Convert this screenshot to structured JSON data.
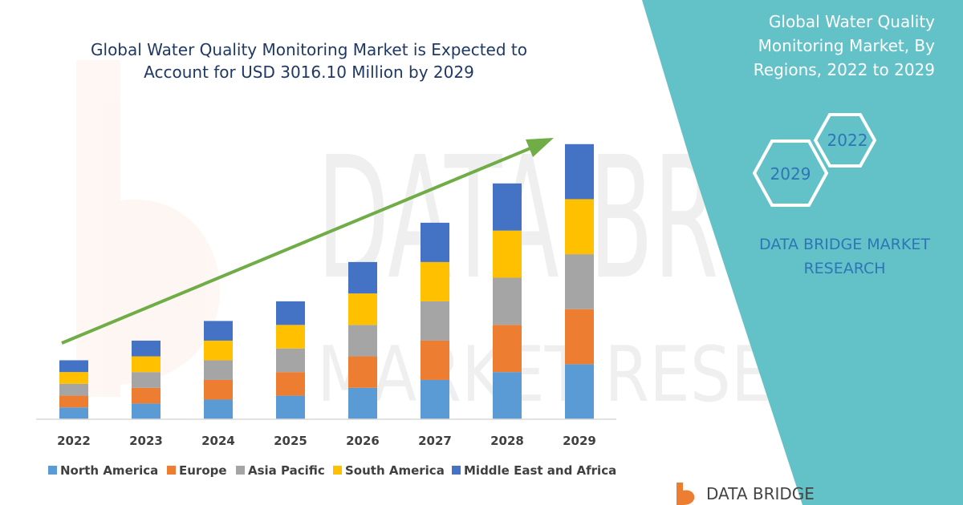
{
  "title_lines": [
    "Global Water Quality Monitoring Market is Expected to",
    "Account for USD 3016.10 Million by 2029"
  ],
  "side_title_lines": [
    "Global Water Quality",
    "Monitoring Market, By",
    "Regions, 2022 to 2029"
  ],
  "badges": {
    "start_year": "2022",
    "end_year": "2029"
  },
  "brand_lines": [
    "DATA BRIDGE MARKET",
    "RESEARCH"
  ],
  "logo_text": "DATA BRIDGE",
  "watermark": {
    "line1": "DATA BRIDGE",
    "line2": "MARKET RESEARCH"
  },
  "colors": {
    "north_america": "#5b9bd5",
    "europe": "#ed7d31",
    "asia_pacific": "#a5a5a5",
    "south_america": "#ffc000",
    "middle_east_africa": "#4472c4",
    "arrow": "#70ad47",
    "panel": "#63c2c8",
    "title": "#1f3864",
    "brand": "#2e75b6"
  },
  "chart_data": {
    "type": "bar",
    "stacked": true,
    "title": "Global Water Quality Monitoring Market is Expected to Account for USD 3016.10 Million by 2029",
    "categories": [
      "2022",
      "2023",
      "2024",
      "2025",
      "2026",
      "2027",
      "2028",
      "2029"
    ],
    "series": [
      {
        "name": "North America",
        "color_key": "north_america",
        "values": [
          15,
          20,
          25,
          30,
          40,
          50,
          60,
          70
        ]
      },
      {
        "name": "Europe",
        "color_key": "europe",
        "values": [
          15,
          20,
          25,
          30,
          40,
          50,
          60,
          70
        ]
      },
      {
        "name": "Asia Pacific",
        "color_key": "asia_pacific",
        "values": [
          15,
          20,
          25,
          30,
          40,
          50,
          60,
          70
        ]
      },
      {
        "name": "South America",
        "color_key": "south_america",
        "values": [
          15,
          20,
          25,
          30,
          40,
          50,
          60,
          70
        ]
      },
      {
        "name": "Middle East and Africa",
        "color_key": "middle_east_africa",
        "values": [
          15,
          20,
          25,
          30,
          40,
          50,
          60,
          70
        ]
      }
    ],
    "ylim": [
      0,
      360
    ],
    "grid": false,
    "legend": "bottom",
    "trend_arrow": true
  }
}
